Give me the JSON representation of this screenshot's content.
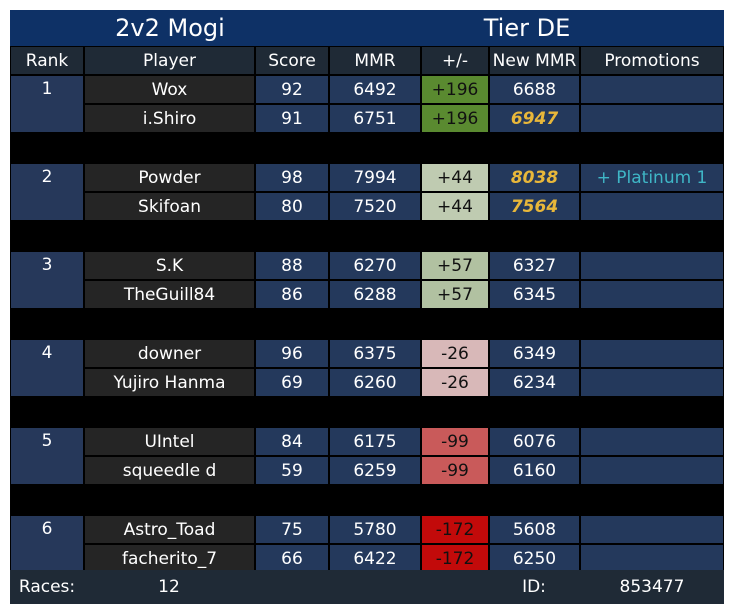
{
  "title": {
    "left": "2v2 Mogi",
    "right": "Tier DE"
  },
  "headers": [
    "Rank",
    "Player",
    "Score",
    "MMR",
    "+/-",
    "New MMR",
    "Promotions"
  ],
  "teams": [
    {
      "rank": "1",
      "delta": "+196",
      "delta_color": "#5a8a30",
      "players": [
        {
          "name": "Wox",
          "score": "92",
          "mmr": "6492",
          "new_mmr": "6688",
          "highlight": false,
          "promotion": ""
        },
        {
          "name": "i.Shiro",
          "score": "91",
          "mmr": "6751",
          "new_mmr": "6947",
          "highlight": true,
          "promotion": ""
        }
      ]
    },
    {
      "rank": "2",
      "delta": "+44",
      "delta_color": "#bfcbb1",
      "players": [
        {
          "name": "Powder",
          "score": "98",
          "mmr": "7994",
          "new_mmr": "8038",
          "highlight": true,
          "promotion": "+ Platinum 1"
        },
        {
          "name": "Skifoan",
          "score": "80",
          "mmr": "7520",
          "new_mmr": "7564",
          "highlight": true,
          "promotion": ""
        }
      ]
    },
    {
      "rank": "3",
      "delta": "+57",
      "delta_color": "#b1c1a1",
      "players": [
        {
          "name": "S.K",
          "score": "88",
          "mmr": "6270",
          "new_mmr": "6327",
          "highlight": false,
          "promotion": ""
        },
        {
          "name": "TheGuill84",
          "score": "86",
          "mmr": "6288",
          "new_mmr": "6345",
          "highlight": false,
          "promotion": ""
        }
      ]
    },
    {
      "rank": "4",
      "delta": "-26",
      "delta_color": "#d8b8b8",
      "players": [
        {
          "name": "downer",
          "score": "96",
          "mmr": "6375",
          "new_mmr": "6349",
          "highlight": false,
          "promotion": ""
        },
        {
          "name": "Yujiro Hanma",
          "score": "69",
          "mmr": "6260",
          "new_mmr": "6234",
          "highlight": false,
          "promotion": ""
        }
      ]
    },
    {
      "rank": "5",
      "delta": "-99",
      "delta_color": "#c95a5a",
      "players": [
        {
          "name": "UIntel",
          "score": "84",
          "mmr": "6175",
          "new_mmr": "6076",
          "highlight": false,
          "promotion": ""
        },
        {
          "name": "squeedle d",
          "score": "59",
          "mmr": "6259",
          "new_mmr": "6160",
          "highlight": false,
          "promotion": ""
        }
      ]
    },
    {
      "rank": "6",
      "delta": "-172",
      "delta_color": "#c20a0a",
      "players": [
        {
          "name": "Astro_Toad",
          "score": "75",
          "mmr": "5780",
          "new_mmr": "5608",
          "highlight": false,
          "promotion": ""
        },
        {
          "name": "facherito_7",
          "score": "66",
          "mmr": "6422",
          "new_mmr": "6250",
          "highlight": false,
          "promotion": ""
        }
      ]
    }
  ],
  "footer": {
    "races_label": "Races:",
    "races_value": "12",
    "id_label": "ID:",
    "id_value": "853477"
  }
}
